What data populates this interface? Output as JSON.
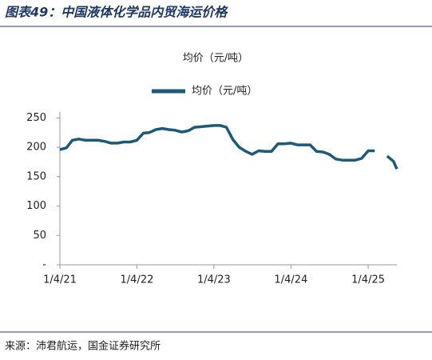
{
  "header": {
    "title": "图表49：中国液体化学品内贸海运价格"
  },
  "chart_data": {
    "type": "line",
    "title": "均价（元/吨）",
    "x": [
      "2021-01-04",
      "2021-02-04",
      "2021-03-04",
      "2021-04-04",
      "2021-05-04",
      "2021-06-04",
      "2021-07-04",
      "2021-08-04",
      "2021-09-04",
      "2021-10-04",
      "2021-11-04",
      "2021-12-04",
      "2022-01-04",
      "2022-02-04",
      "2022-03-04",
      "2022-04-04",
      "2022-05-04",
      "2022-06-04",
      "2022-07-04",
      "2022-08-04",
      "2022-09-04",
      "2022-10-04",
      "2022-11-04",
      "2022-12-04",
      "2023-01-04",
      "2023-02-04",
      "2023-03-04",
      "2023-04-04",
      "2023-05-04",
      "2023-06-04",
      "2023-07-04",
      "2023-08-04",
      "2023-09-04",
      "2023-10-04",
      "2023-11-04",
      "2023-12-04",
      "2024-01-04",
      "2024-02-04",
      "2024-03-04",
      "2024-04-04",
      "2024-05-04",
      "2024-06-04",
      "2024-07-04",
      "2024-08-04",
      "2024-09-04",
      "2024-10-04",
      "2024-11-04",
      "2024-12-04",
      "2025-01-04",
      "2025-02-04",
      "2025-03-04",
      "2025-04-04",
      "2025-05-04",
      "2025-05-20"
    ],
    "series": [
      {
        "name": "均价（元/吨）",
        "color": "#1d5a78",
        "values": [
          196,
          199,
          212,
          214,
          212,
          212,
          212,
          210,
          207,
          207,
          209,
          209,
          212,
          224,
          225,
          230,
          232,
          230,
          229,
          226,
          228,
          234,
          235,
          236,
          237,
          237,
          234,
          213,
          200,
          193,
          188,
          194,
          193,
          193,
          206,
          206,
          207,
          204,
          204,
          204,
          193,
          192,
          188,
          180,
          178,
          178,
          178,
          181,
          194,
          194,
          null,
          185,
          176,
          163
        ]
      }
    ],
    "ylim": [
      0,
      260
    ],
    "yticks": [
      {
        "value": 0,
        "label": "-"
      },
      50,
      100,
      150,
      200,
      250
    ],
    "xlim": [
      "2021-01-04",
      "2025-05-20"
    ],
    "xticks": [
      {
        "value": "2021-01-04",
        "label": "1/4/21"
      },
      {
        "value": "2022-01-04",
        "label": "1/4/22"
      },
      {
        "value": "2023-01-04",
        "label": "1/4/23"
      },
      {
        "value": "2024-01-04",
        "label": "1/4/24"
      },
      {
        "value": "2025-01-04",
        "label": "1/4/25"
      }
    ],
    "legend": "top"
  },
  "footer": {
    "source": "来源：沛君航运，国金证券研究所"
  }
}
